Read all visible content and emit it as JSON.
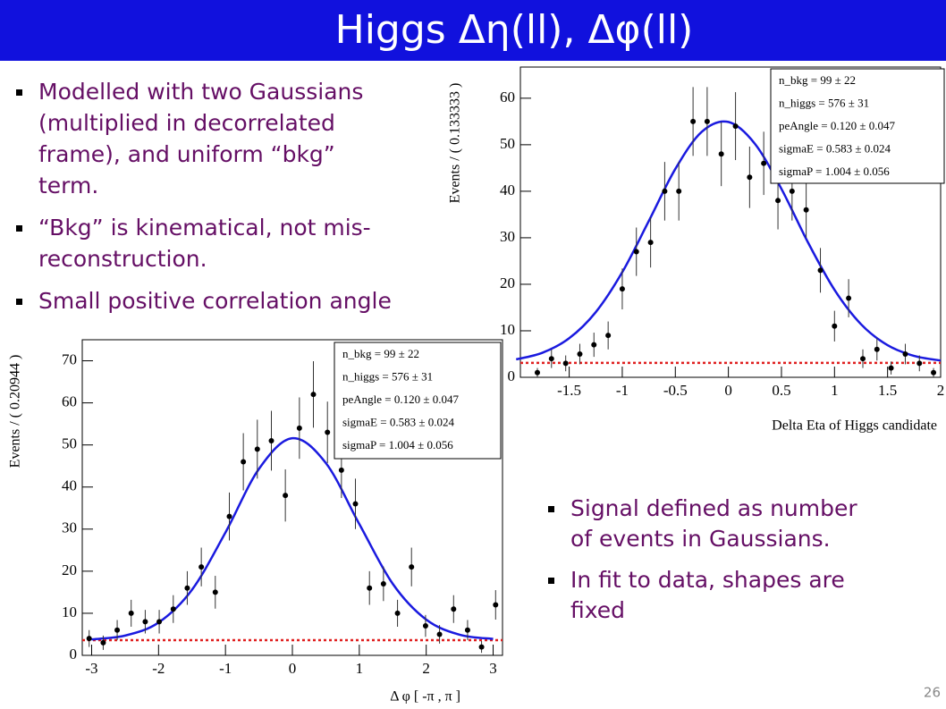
{
  "title": "Higgs Δη(ll), Δφ(ll)",
  "bullets_top": [
    [
      "Modelled with two Gaussians",
      "(multiplied in decorrelated",
      "frame), and uniform “bkg”",
      "term."
    ],
    [
      "“Bkg” is kinematical, not mis-",
      "reconstruction."
    ],
    [
      "Small positive correlation angle"
    ]
  ],
  "bullets_bottom": [
    [
      "Signal defined as number",
      "of events in Gaussians."
    ],
    [
      "In fit to data, shapes are",
      "fixed"
    ]
  ],
  "page_number": "26",
  "chart_data": [
    {
      "type": "scatter",
      "y_label": "Events / ( 0.133333 )",
      "x_label": "Delta Eta of Higgs candidate",
      "color": "#000000",
      "x": [
        -1.8,
        -1.667,
        -1.533,
        -1.4,
        -1.267,
        -1.133,
        -1.0,
        -0.867,
        -0.733,
        -0.6,
        -0.467,
        -0.333,
        -0.2,
        -0.067,
        0.067,
        0.2,
        0.333,
        0.467,
        0.6,
        0.733,
        0.867,
        1.0,
        1.133,
        1.267,
        1.4,
        1.533,
        1.667,
        1.8,
        1.933
      ],
      "values": [
        1,
        4,
        3,
        5,
        7,
        9,
        19,
        27,
        29,
        40,
        40,
        55,
        55,
        48,
        54,
        43,
        46,
        38,
        40,
        36,
        23,
        11,
        17,
        4,
        6,
        2,
        5,
        3,
        1
      ],
      "errors": [
        1,
        2,
        1.7,
        2.2,
        2.6,
        3,
        4.4,
        5.2,
        5.4,
        6.3,
        6.3,
        7.4,
        7.4,
        6.9,
        7.3,
        6.6,
        6.8,
        6.2,
        6.3,
        6,
        4.8,
        3.3,
        4.1,
        2,
        2.4,
        1.4,
        2.2,
        1.7,
        1
      ],
      "fit": {
        "color": "#1a1adf",
        "x": [
          -2,
          -1.75,
          -1.5,
          -1.25,
          -1,
          -0.75,
          -0.5,
          -0.25,
          0,
          0.25,
          0.5,
          0.75,
          1,
          1.25,
          1.5,
          1.75,
          2
        ],
        "values": [
          3.85,
          5.3,
          8.4,
          14.0,
          22.6,
          33.6,
          44.8,
          52.8,
          54.9,
          50.2,
          40.5,
          29.0,
          18.8,
          11.4,
          6.9,
          4.6,
          3.6
        ]
      },
      "background_level": 3.1,
      "background_color": "#e02020",
      "xlim": [
        -1.96,
        2
      ],
      "ylim": [
        0,
        66.7
      ],
      "xticks": [
        -1.5,
        -1,
        -0.5,
        0,
        0.5,
        1,
        1.5,
        2
      ],
      "yticks": [
        0,
        10,
        20,
        30,
        40,
        50,
        60
      ],
      "stats": [
        "n_bkg =  99 ± 22",
        "n_higgs =  576 ± 31",
        "peAngle =  0.120 ± 0.047",
        "sigmaE =  0.583 ± 0.024",
        "sigmaP =  1.004 ± 0.056"
      ]
    },
    {
      "type": "scatter",
      "y_label": "Events / ( 0.20944 )",
      "x_label": "Δ φ [ -π , π ]",
      "color": "#000000",
      "x": [
        -3.037,
        -2.827,
        -2.618,
        -2.409,
        -2.199,
        -1.99,
        -1.78,
        -1.571,
        -1.361,
        -1.152,
        -0.942,
        -0.733,
        -0.524,
        -0.314,
        -0.105,
        0.105,
        0.314,
        0.524,
        0.733,
        0.942,
        1.152,
        1.361,
        1.571,
        1.78,
        1.99,
        2.199,
        2.409,
        2.618,
        2.827,
        3.037
      ],
      "values": [
        4,
        3,
        6,
        10,
        8,
        8,
        11,
        16,
        21,
        15,
        33,
        46,
        49,
        51,
        38,
        54,
        62,
        53,
        44,
        36,
        16,
        17,
        10,
        21,
        7,
        5,
        11,
        6,
        2,
        12
      ],
      "errors": [
        2,
        1.7,
        2.4,
        3.2,
        2.8,
        2.8,
        3.3,
        4,
        4.6,
        3.9,
        5.7,
        6.8,
        7,
        7.1,
        6.2,
        7.3,
        7.9,
        7.3,
        6.6,
        6,
        4,
        4.1,
        3.2,
        4.6,
        2.6,
        2.2,
        3.3,
        2.4,
        1.4,
        3.5
      ],
      "fit": {
        "color": "#1a1adf",
        "x": [
          -3,
          -2.5,
          -2,
          -1.5,
          -1,
          -0.5,
          0,
          0.5,
          1,
          1.5,
          2,
          2.5,
          3
        ],
        "values": [
          3.8,
          4.7,
          7.8,
          15.6,
          29.2,
          44.3,
          51.6,
          45.7,
          31.2,
          17.0,
          8.5,
          4.9,
          3.9
        ]
      },
      "background_level": 3.6,
      "background_color": "#e02020",
      "xlim": [
        -3.14,
        3.14
      ],
      "ylim": [
        0,
        75
      ],
      "xticks": [
        -3,
        -2,
        -1,
        0,
        1,
        2,
        3
      ],
      "yticks": [
        0,
        10,
        20,
        30,
        40,
        50,
        60,
        70
      ],
      "stats": [
        "n_bkg =  99 ± 22",
        "n_higgs =  576 ± 31",
        "peAngle =  0.120 ± 0.047",
        "sigmaE =  0.583 ± 0.024",
        "sigmaP =  1.004 ± 0.056"
      ]
    }
  ]
}
